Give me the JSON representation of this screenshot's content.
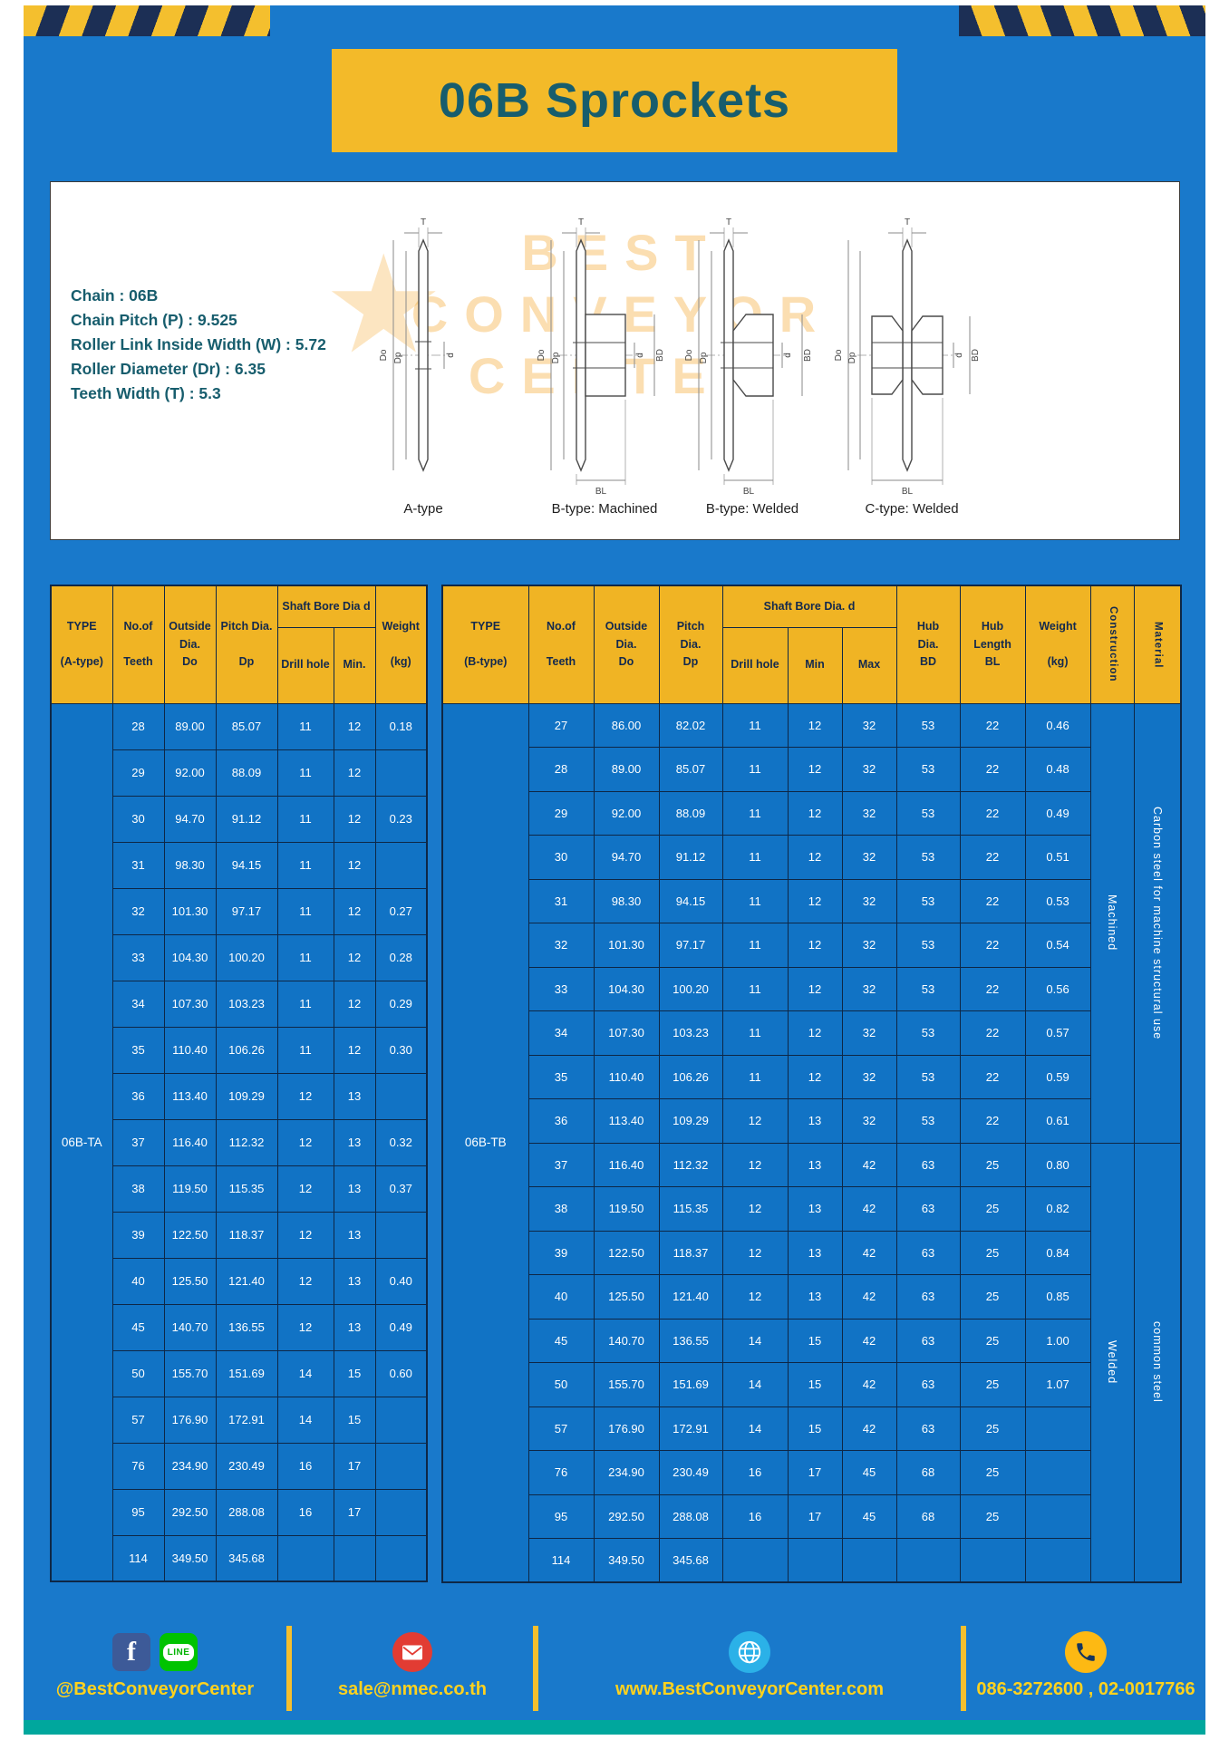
{
  "page": {
    "title": "06B Sprockets"
  },
  "colors": {
    "page_blue": "#1979cb",
    "banner_yellow": "#f3ba29",
    "table_header_yellow": "#f0b424",
    "table_cell_blue": "#1173c5",
    "title_teal": "#175d6d",
    "footer_text_yellow": "#ffd21e",
    "bottom_bar_teal": "#00a79d",
    "stripe_navy": "#1c2f55"
  },
  "specs": {
    "chain": "Chain : 06B",
    "pitch": "Chain Pitch (P) : 9.525",
    "roller_width": "Roller Link Inside Width (W) : 5.72",
    "roller_dia": "Roller Diameter (Dr) : 6.35",
    "teeth_width": "Teeth Width (T) : 5.3"
  },
  "watermark": {
    "star": "★",
    "line1": "BEST",
    "line2": "CONVEYOR",
    "line3": "CENTER"
  },
  "diagrams": {
    "captions": [
      "A-type",
      "B-type: Machined",
      "B-type: Welded",
      "C-type: Welded"
    ],
    "labels": {
      "t": "T",
      "do": "Do",
      "dp": "Dp",
      "d": "d",
      "bd": "BD",
      "bl": "BL"
    }
  },
  "table_a": {
    "type_label": "06B-TA",
    "headers": {
      "type": "TYPE\n\n(A-type)",
      "teeth": "No.of\n\nTeeth",
      "outside": "Outside\nDia.\nDo",
      "pitch": "Pitch Dia.\n\nDp",
      "shaft_bore": "Shaft Bore Dia d",
      "drill_hole": "Drill hole",
      "min": "Min.",
      "weight": "Weight\n\n(kg)"
    },
    "rows": [
      [
        "28",
        "89.00",
        "85.07",
        "11",
        "12",
        "0.18"
      ],
      [
        "29",
        "92.00",
        "88.09",
        "11",
        "12",
        ""
      ],
      [
        "30",
        "94.70",
        "91.12",
        "11",
        "12",
        "0.23"
      ],
      [
        "31",
        "98.30",
        "94.15",
        "11",
        "12",
        ""
      ],
      [
        "32",
        "101.30",
        "97.17",
        "11",
        "12",
        "0.27"
      ],
      [
        "33",
        "104.30",
        "100.20",
        "11",
        "12",
        "0.28"
      ],
      [
        "34",
        "107.30",
        "103.23",
        "11",
        "12",
        "0.29"
      ],
      [
        "35",
        "110.40",
        "106.26",
        "11",
        "12",
        "0.30"
      ],
      [
        "36",
        "113.40",
        "109.29",
        "12",
        "13",
        ""
      ],
      [
        "37",
        "116.40",
        "112.32",
        "12",
        "13",
        "0.32"
      ],
      [
        "38",
        "119.50",
        "115.35",
        "12",
        "13",
        "0.37"
      ],
      [
        "39",
        "122.50",
        "118.37",
        "12",
        "13",
        ""
      ],
      [
        "40",
        "125.50",
        "121.40",
        "12",
        "13",
        "0.40"
      ],
      [
        "45",
        "140.70",
        "136.55",
        "12",
        "13",
        "0.49"
      ],
      [
        "50",
        "155.70",
        "151.69",
        "14",
        "15",
        "0.60"
      ],
      [
        "57",
        "176.90",
        "172.91",
        "14",
        "15",
        ""
      ],
      [
        "76",
        "234.90",
        "230.49",
        "16",
        "17",
        ""
      ],
      [
        "95",
        "292.50",
        "288.08",
        "16",
        "17",
        ""
      ],
      [
        "114",
        "349.50",
        "345.68",
        "",
        "",
        ""
      ]
    ]
  },
  "table_b": {
    "type_label": "06B-TB",
    "headers": {
      "type": "TYPE\n\n(B-type)",
      "teeth": "No.of\n\nTeeth",
      "outside": "Outside\nDia.\nDo",
      "pitch": "Pitch\nDia.\nDp",
      "shaft_bore": "Shaft Bore Dia. d",
      "drill_hole": "Drill hole",
      "min": "Min",
      "max": "Max",
      "hub_dia": "Hub\nDia.\nBD",
      "hub_length": "Hub\nLength\nBL",
      "weight": "Weight\n\n(kg)",
      "construction": "Construction",
      "material": "Material"
    },
    "rows": [
      [
        "27",
        "86.00",
        "82.02",
        "11",
        "12",
        "32",
        "53",
        "22",
        "0.46"
      ],
      [
        "28",
        "89.00",
        "85.07",
        "11",
        "12",
        "32",
        "53",
        "22",
        "0.48"
      ],
      [
        "29",
        "92.00",
        "88.09",
        "11",
        "12",
        "32",
        "53",
        "22",
        "0.49"
      ],
      [
        "30",
        "94.70",
        "91.12",
        "11",
        "12",
        "32",
        "53",
        "22",
        "0.51"
      ],
      [
        "31",
        "98.30",
        "94.15",
        "11",
        "12",
        "32",
        "53",
        "22",
        "0.53"
      ],
      [
        "32",
        "101.30",
        "97.17",
        "11",
        "12",
        "32",
        "53",
        "22",
        "0.54"
      ],
      [
        "33",
        "104.30",
        "100.20",
        "11",
        "12",
        "32",
        "53",
        "22",
        "0.56"
      ],
      [
        "34",
        "107.30",
        "103.23",
        "11",
        "12",
        "32",
        "53",
        "22",
        "0.57"
      ],
      [
        "35",
        "110.40",
        "106.26",
        "11",
        "12",
        "32",
        "53",
        "22",
        "0.59"
      ],
      [
        "36",
        "113.40",
        "109.29",
        "12",
        "13",
        "32",
        "53",
        "22",
        "0.61"
      ],
      [
        "37",
        "116.40",
        "112.32",
        "12",
        "13",
        "42",
        "63",
        "25",
        "0.80"
      ],
      [
        "38",
        "119.50",
        "115.35",
        "12",
        "13",
        "42",
        "63",
        "25",
        "0.82"
      ],
      [
        "39",
        "122.50",
        "118.37",
        "12",
        "13",
        "42",
        "63",
        "25",
        "0.84"
      ],
      [
        "40",
        "125.50",
        "121.40",
        "12",
        "13",
        "42",
        "63",
        "25",
        "0.85"
      ],
      [
        "45",
        "140.70",
        "136.55",
        "14",
        "15",
        "42",
        "63",
        "25",
        "1.00"
      ],
      [
        "50",
        "155.70",
        "151.69",
        "14",
        "15",
        "42",
        "63",
        "25",
        "1.07"
      ],
      [
        "57",
        "176.90",
        "172.91",
        "14",
        "15",
        "42",
        "63",
        "25",
        ""
      ],
      [
        "76",
        "234.90",
        "230.49",
        "16",
        "17",
        "45",
        "68",
        "25",
        ""
      ],
      [
        "95",
        "292.50",
        "288.08",
        "16",
        "17",
        "45",
        "68",
        "25",
        ""
      ],
      [
        "114",
        "349.50",
        "345.68",
        "",
        "",
        "",
        "",
        "",
        ""
      ]
    ],
    "construction_spans": [
      {
        "label": "Machined",
        "start": 0,
        "count": 10
      },
      {
        "label": "Welded",
        "start": 10,
        "count": 10
      }
    ],
    "material_spans": [
      {
        "label": "Carbon steel for machine structural use",
        "start": 0,
        "count": 10
      },
      {
        "label": "common steel",
        "start": 10,
        "count": 10
      }
    ]
  },
  "footer": {
    "fb_letter": "f",
    "line_label": "LINE",
    "facebook_line_text": "@BestConveyorCenter",
    "email_text": "sale@nmec.co.th",
    "website_text": "www.BestConveyorCenter.com",
    "phone_text": "086-3272600 , 02-0017766"
  }
}
